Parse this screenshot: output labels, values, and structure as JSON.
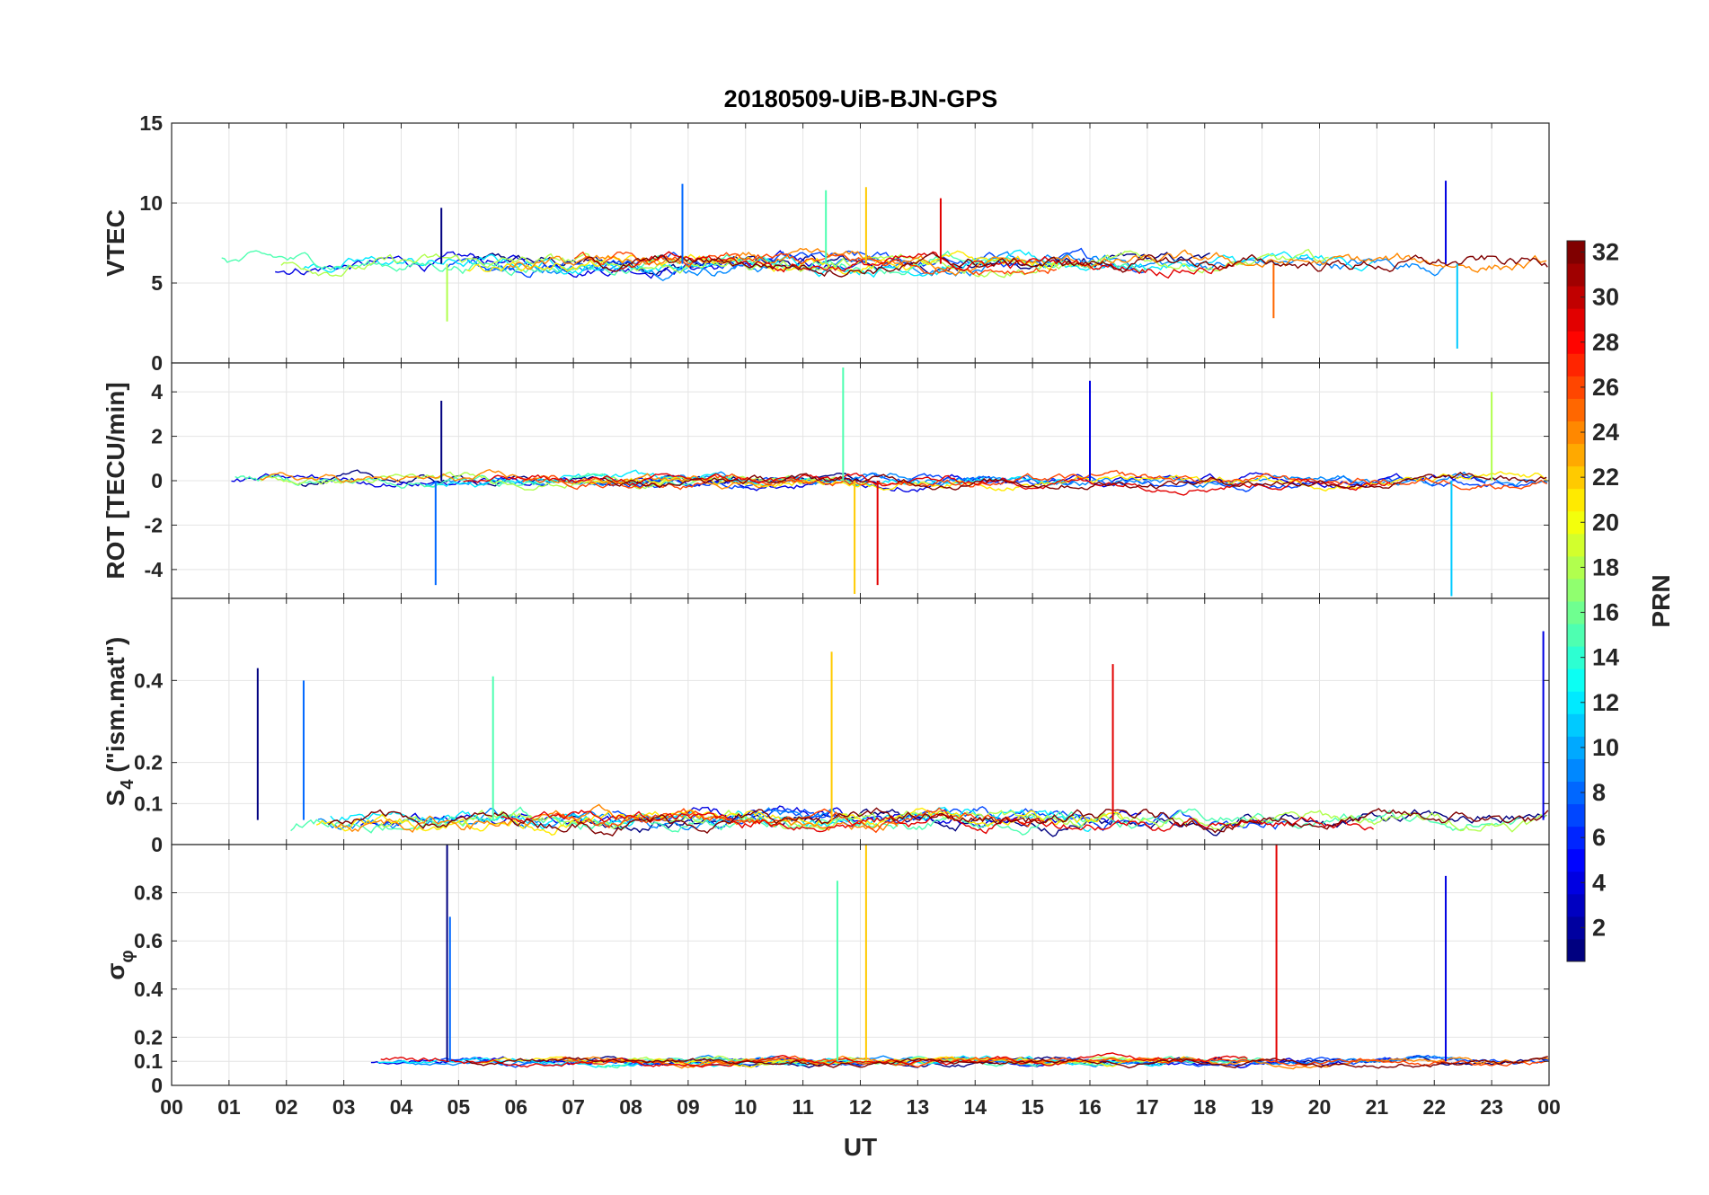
{
  "chart_data": {
    "type": "line",
    "title": "20180509-UiB-BJN-GPS",
    "xlabel": "UT",
    "x_tick_labels": [
      "00",
      "01",
      "02",
      "03",
      "04",
      "05",
      "06",
      "07",
      "08",
      "09",
      "10",
      "11",
      "12",
      "13",
      "14",
      "15",
      "16",
      "17",
      "18",
      "19",
      "20",
      "21",
      "22",
      "23",
      "00"
    ],
    "xlim": [
      0,
      24
    ],
    "colorbar": {
      "label": "PRN",
      "ticks": [
        2,
        4,
        6,
        8,
        10,
        12,
        14,
        16,
        18,
        20,
        22,
        24,
        26,
        28,
        30,
        32
      ],
      "tick_labels": [
        "2",
        "4",
        "6",
        "8",
        "10",
        "12",
        "14",
        "16",
        "18",
        "20",
        "22",
        "24",
        "26",
        "28",
        "30",
        "32"
      ],
      "range": [
        1,
        32
      ],
      "colormap": "jet"
    },
    "panels": [
      {
        "id": "vtec",
        "ylabel": "VTEC",
        "ylim": [
          0,
          15
        ],
        "yticks": [
          0,
          5,
          10,
          15
        ],
        "ytick_labels": [
          "0",
          "5",
          "10",
          "15"
        ],
        "baseline": 6.2,
        "noise": 0.5,
        "series_summary": "about 32 GPS PRN traces; mostly 4-9 TECU with peaks near 11 at 09 UT, 12 UT and 22 UT",
        "annotations": [
          {
            "x": 4.7,
            "y": 9.7
          },
          {
            "x": 8.9,
            "y": 11.2
          },
          {
            "x": 11.4,
            "y": 10.8
          },
          {
            "x": 12.1,
            "y": 11
          },
          {
            "x": 13.4,
            "y": 10.3
          },
          {
            "x": 22.2,
            "y": 11.4
          },
          {
            "x": 22.4,
            "y": 0.9
          },
          {
            "x": 4.8,
            "y": 2.6
          },
          {
            "x": 19.2,
            "y": 2.8
          }
        ]
      },
      {
        "id": "rot",
        "ylabel": "ROT [TECU/min]",
        "ylim": [
          -5.3,
          5.3
        ],
        "yticks": [
          -4,
          -2,
          0,
          2,
          4
        ],
        "ytick_labels": [
          "-4",
          "-2",
          "0",
          "2",
          "4"
        ],
        "baseline": 0,
        "noise": 0.25,
        "series_summary": "fluctuations around 0 with bursts near 04-05, 11-12.5, 16-19 and 22-24 UT",
        "annotations": [
          {
            "x": 4.7,
            "y": 3.6
          },
          {
            "x": 4.6,
            "y": -4.7
          },
          {
            "x": 11.7,
            "y": 5.1
          },
          {
            "x": 11.9,
            "y": -5.1
          },
          {
            "x": 12.3,
            "y": -4.7
          },
          {
            "x": 16,
            "y": 4.5
          },
          {
            "x": 22.3,
            "y": -5.2
          },
          {
            "x": 23,
            "y": 4
          }
        ]
      },
      {
        "id": "s4",
        "ylabel_main": "S",
        "ylabel_sub": "4",
        "ylabel_rest": " (\"ism.mat\")",
        "ylim": [
          0,
          0.6
        ],
        "yticks": [
          0,
          0.1,
          0.2,
          0.4
        ],
        "ytick_labels": [
          "0",
          "0.1",
          "0.2",
          "0.4"
        ],
        "baseline": 0.06,
        "noise": 0.02,
        "series_summary": "S4 index mostly 0.03-0.2 with peaks up to about 0.47 at 11.5 UT and 0.52 at 23.9 UT",
        "annotations": [
          {
            "x": 1.5,
            "y": 0.43
          },
          {
            "x": 2.3,
            "y": 0.4
          },
          {
            "x": 5.6,
            "y": 0.41
          },
          {
            "x": 11.5,
            "y": 0.47
          },
          {
            "x": 16.4,
            "y": 0.44
          },
          {
            "x": 23.9,
            "y": 0.52
          }
        ]
      },
      {
        "id": "sigphi",
        "ylabel_main": "σ",
        "ylabel_sub": "φ",
        "ylim": [
          0,
          1
        ],
        "yticks": [
          0,
          0.1,
          0.2,
          0.4,
          0.6,
          0.8
        ],
        "ytick_labels": [
          "0",
          "0.1",
          "0.2",
          "0.4",
          "0.6",
          "0.8"
        ],
        "baseline": 0.1,
        "noise": 0.015,
        "series_summary": "phase scintillation near 0.1 with spikes near 04.8, 11.6-12.2, 19.3 and 22.2 UT",
        "annotations": [
          {
            "x": 4.8,
            "y": 1
          },
          {
            "x": 4.85,
            "y": 0.7
          },
          {
            "x": 11.6,
            "y": 0.85
          },
          {
            "x": 12.1,
            "y": 1
          },
          {
            "x": 19.25,
            "y": 1
          },
          {
            "x": 22.2,
            "y": 0.87
          }
        ]
      }
    ]
  }
}
